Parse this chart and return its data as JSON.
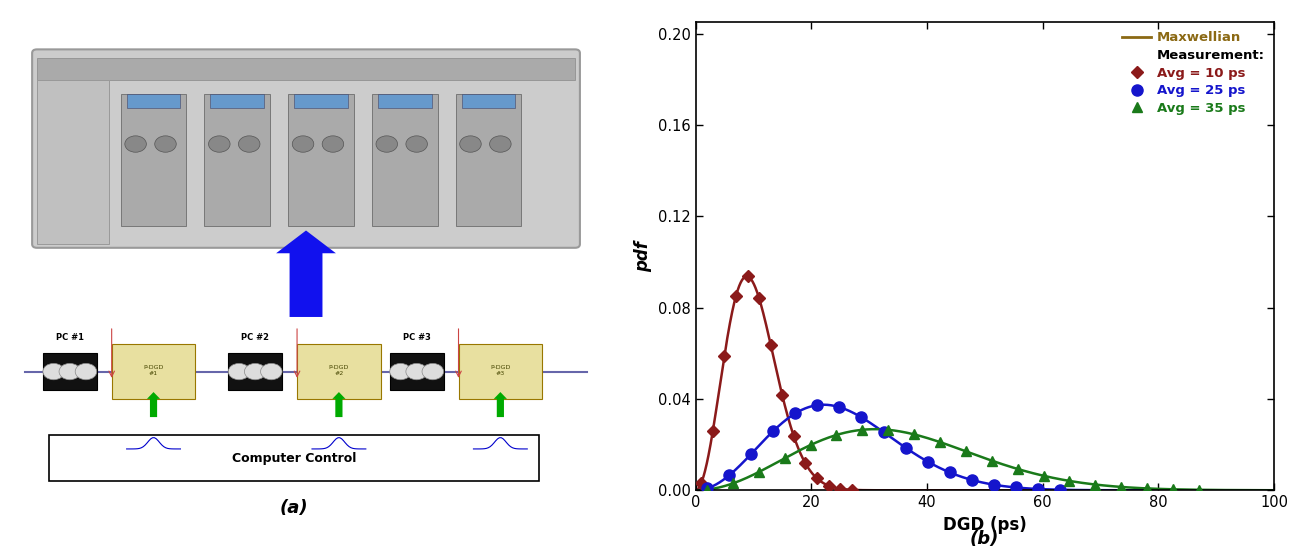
{
  "title_a": "(a)",
  "title_b": "(b)",
  "xlabel": "DGD (ps)",
  "ylabel": "pdf",
  "xlim": [
    0,
    100
  ],
  "ylim": [
    0,
    0.205
  ],
  "xticks": [
    0,
    20,
    40,
    60,
    80,
    100
  ],
  "yticks": [
    0.0,
    0.04,
    0.08,
    0.12,
    0.16,
    0.2
  ],
  "avg_values": [
    10,
    25,
    35
  ],
  "curve_colors": [
    "#8B1A1A",
    "#1515CC",
    "#1A7A1A"
  ],
  "maxwellian_color": "#8B6914",
  "legend_maxwellian": "Maxwellian",
  "legend_measurement": "Measurement:",
  "legend_labels": [
    "Avg = 10 ps",
    "Avg = 25 ps",
    "Avg = 35 ps"
  ],
  "markers": [
    "D",
    "o",
    "^"
  ],
  "marker_sizes": [
    6,
    8,
    7
  ],
  "n_markers": [
    14,
    17,
    20
  ],
  "marker_ranges": [
    [
      1.0,
      27.0
    ],
    [
      2.0,
      63.0
    ],
    [
      2.0,
      87.0
    ]
  ],
  "plot_bg": "#ffffff",
  "fig_bg": "#ffffff"
}
